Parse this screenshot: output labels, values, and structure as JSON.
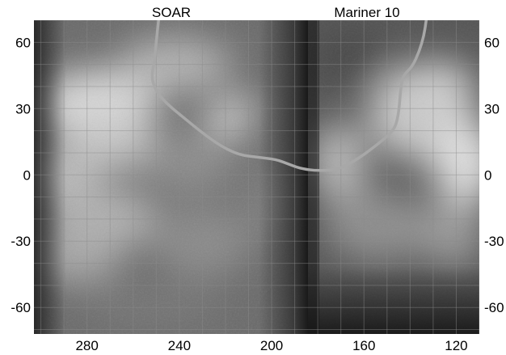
{
  "map": {
    "panel_labels": {
      "left": "SOAR",
      "right": "Mariner 10"
    },
    "longitude_axis": {
      "range": [
        303,
        110
      ],
      "grid_step": 10,
      "ticks": [
        280,
        240,
        200,
        160,
        120
      ],
      "tick_labels": [
        "280",
        "240",
        "200",
        "160",
        "120"
      ]
    },
    "latitude_axis": {
      "range": [
        -72,
        70
      ],
      "grid_step": 10,
      "ticks": [
        60,
        30,
        0,
        -30,
        -60
      ],
      "tick_labels": [
        "60",
        "30",
        "0",
        "-30",
        "-60"
      ]
    },
    "seam_longitude": 183,
    "colors": {
      "curve": "#a8a8a8",
      "grid": "#8c8c8c",
      "background": "#ffffff"
    },
    "boundary_curve": [
      [
        249,
        70
      ],
      [
        250,
        60
      ],
      [
        251,
        50
      ],
      [
        252,
        45
      ],
      [
        251,
        40
      ],
      [
        248,
        35
      ],
      [
        243,
        30
      ],
      [
        237,
        25
      ],
      [
        230,
        19
      ],
      [
        222,
        13
      ],
      [
        214,
        9
      ],
      [
        206,
        8
      ],
      [
        198,
        7
      ],
      [
        193,
        5
      ],
      [
        188,
        3
      ],
      [
        182,
        2
      ],
      [
        175,
        2
      ],
      [
        170,
        3
      ],
      [
        163,
        7
      ],
      [
        155,
        13
      ],
      [
        147,
        20
      ],
      [
        145,
        27
      ],
      [
        144,
        40
      ],
      [
        143,
        45
      ],
      [
        139,
        49
      ],
      [
        136,
        56
      ],
      [
        134,
        63
      ],
      [
        133,
        70
      ]
    ]
  }
}
